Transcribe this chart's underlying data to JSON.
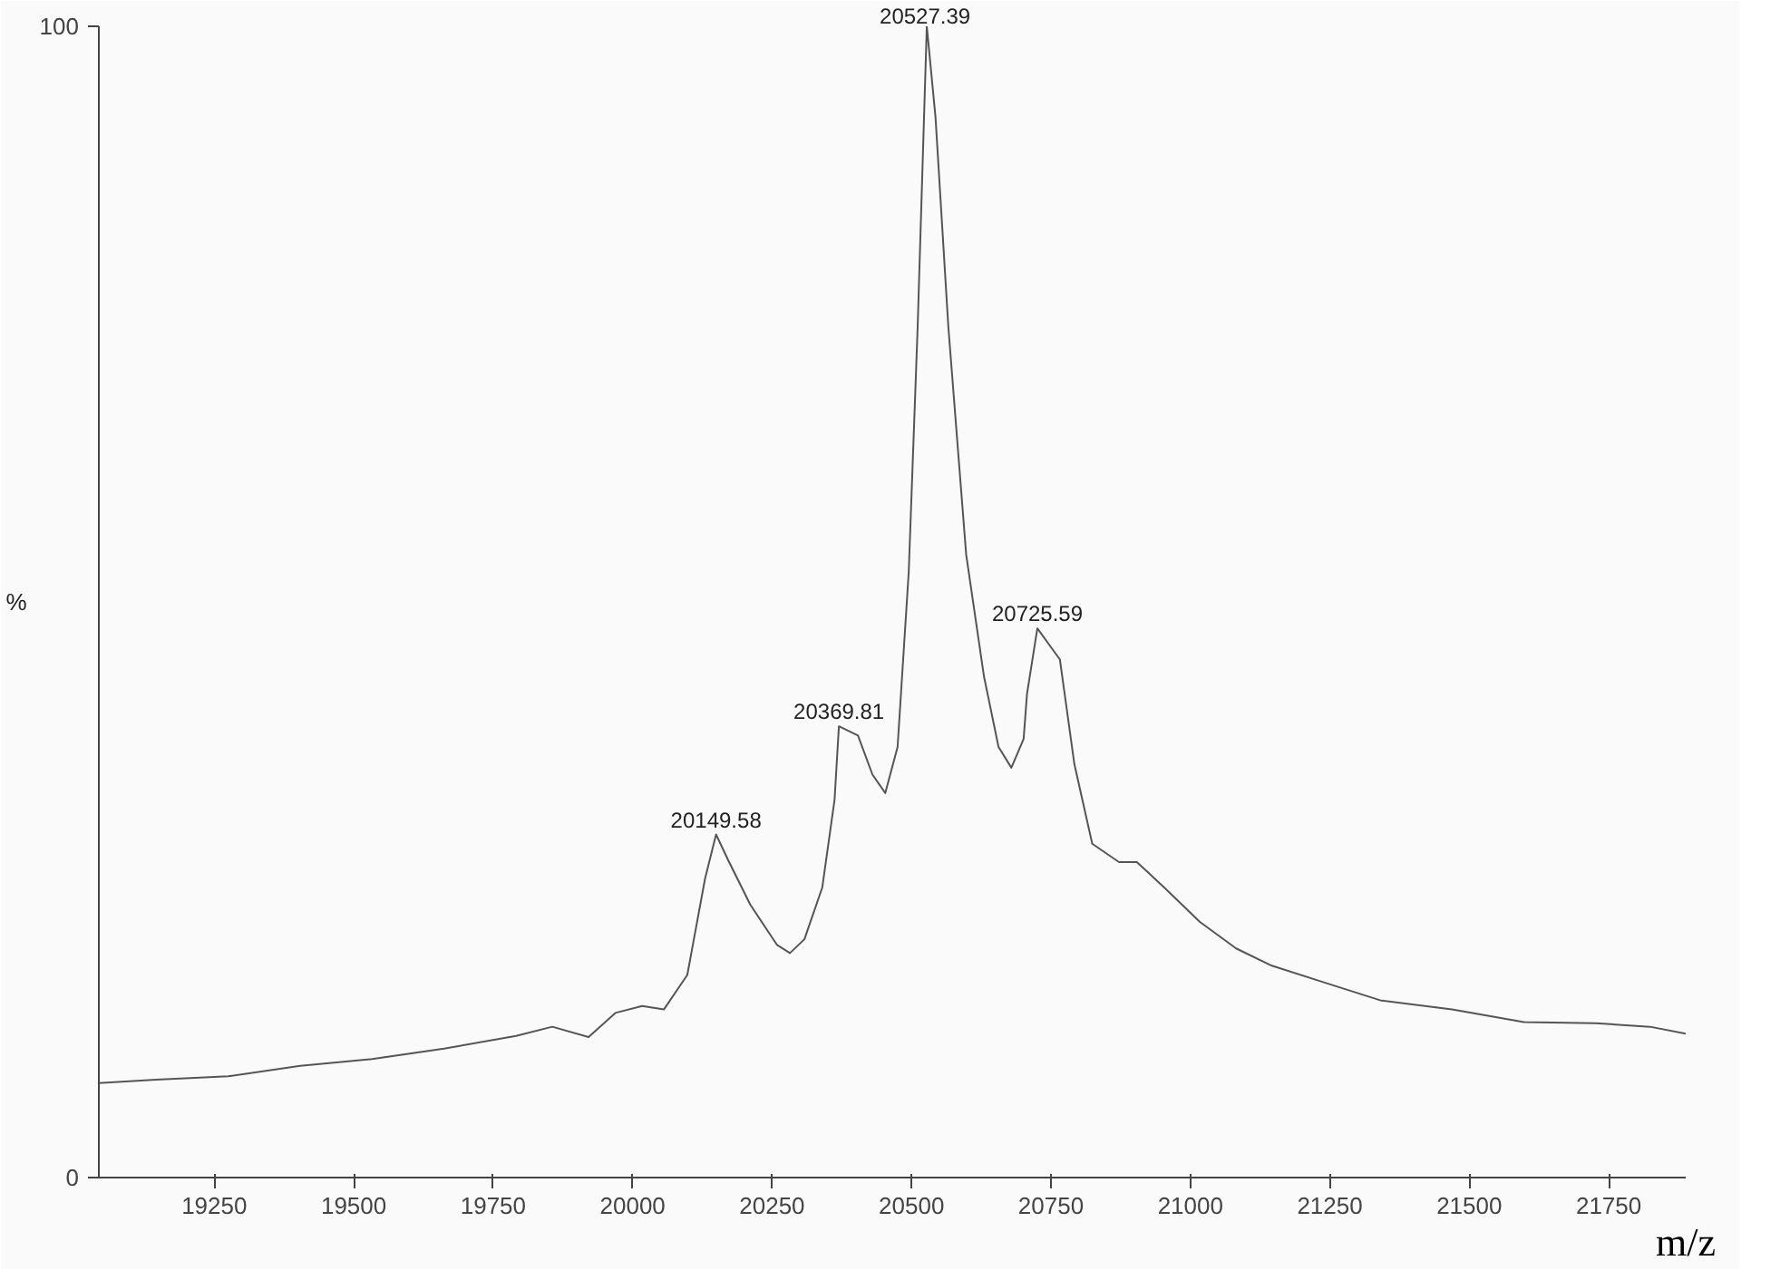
{
  "chart_data": {
    "type": "line",
    "xlabel": "m/z",
    "ylabel": "%",
    "x": [
      19043,
      19146,
      19275,
      19404,
      19533,
      19662,
      19791,
      19856,
      19921,
      19969,
      20017,
      20056,
      20098,
      20130,
      20149.58,
      20172,
      20211,
      20259,
      20282,
      20308,
      20340,
      20362,
      20369.81,
      20404,
      20430,
      20453,
      20475,
      20495,
      20511,
      20527.39,
      20543,
      20566,
      20598,
      20630,
      20656,
      20679,
      20701,
      20707,
      20725.59,
      20766,
      20792,
      20824,
      20872,
      20904,
      20953,
      21017,
      21082,
      21146,
      21243,
      21340,
      21469,
      21598,
      21727,
      21824,
      21888
    ],
    "series": [
      {
        "color": "#555555",
        "values": [
          8.2,
          8.5,
          8.8,
          9.7,
          10.3,
          11.2,
          12.3,
          13.1,
          12.2,
          14.3,
          14.9,
          14.6,
          17.6,
          26.0,
          29.8,
          27.5,
          23.7,
          20.2,
          19.5,
          20.7,
          25.2,
          32.8,
          39.2,
          38.4,
          35.0,
          33.4,
          37.4,
          52.6,
          73.9,
          100,
          92.1,
          73.9,
          54.1,
          43.5,
          37.4,
          35.6,
          38.1,
          42.0,
          47.7,
          45.0,
          35.9,
          29.0,
          27.4,
          27.4,
          25.2,
          22.2,
          19.9,
          18.4,
          16.9,
          15.4,
          14.6,
          13.5,
          13.4,
          13.1,
          12.5
        ]
      }
    ],
    "xlim": [
      19043,
      21888
    ],
    "ylim": [
      0,
      100
    ],
    "xticks": [
      19250,
      19500,
      19750,
      20000,
      20250,
      20500,
      20750,
      21000,
      21250,
      21500,
      21750
    ],
    "yticks": [
      0,
      100
    ],
    "annotations": [
      {
        "text": "20149.58",
        "x": 20149.58,
        "y": 29.8
      },
      {
        "text": "20369.81",
        "x": 20369.81,
        "y": 39.2
      },
      {
        "text": "20527.39",
        "x": 20527.39,
        "y": 100
      },
      {
        "text": "20725.59",
        "x": 20725.59,
        "y": 47.7
      }
    ],
    "grid": false,
    "marker": "none",
    "line_style": "solid"
  }
}
